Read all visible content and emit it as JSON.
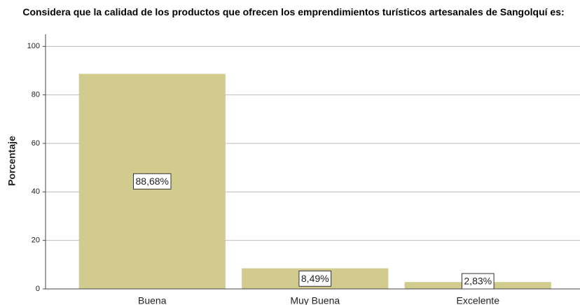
{
  "chart_data": {
    "type": "bar",
    "title": "Considera que la calidad de los productos que ofrecen los emprendimientos turísticos artesanales de Sangolquí es:",
    "y_label": "Porcentaje",
    "categories": [
      "Buena",
      "Muy Buena",
      "Excelente"
    ],
    "values": [
      88.68,
      8.49,
      2.83
    ],
    "value_labels": [
      "88,68%",
      "8,49%",
      "2,83%"
    ],
    "color": "#d2cb8e",
    "ylim": [
      0,
      105
    ],
    "yticks": [
      0,
      20,
      40,
      60,
      80,
      100
    ],
    "grid": true
  }
}
